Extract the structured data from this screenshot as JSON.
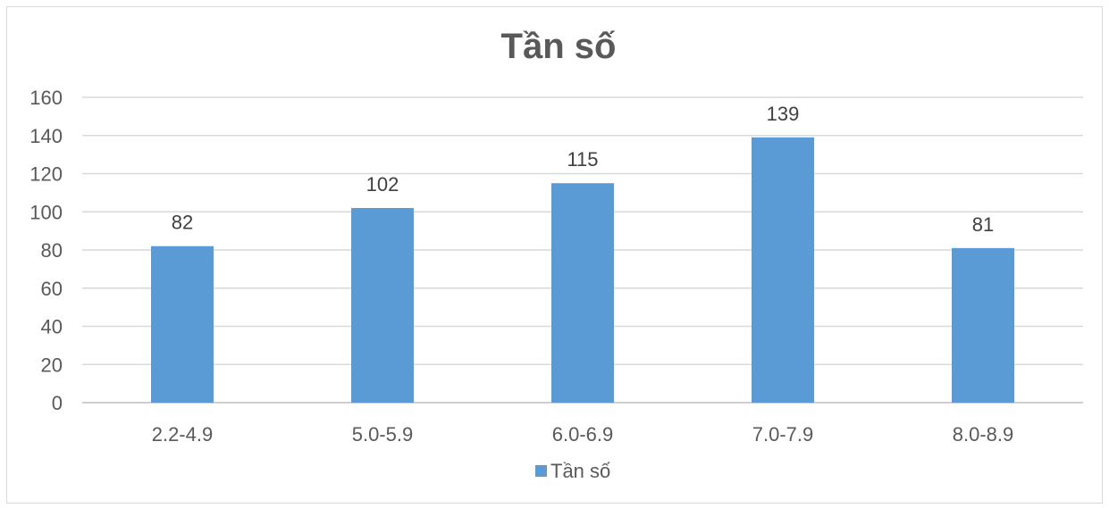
{
  "chart_data": {
    "type": "bar",
    "title": "Tần số",
    "categories": [
      "2.2-4.9",
      "5.0-5.9",
      "6.0-6.9",
      "7.0-7.9",
      "8.0-8.9"
    ],
    "series": [
      {
        "name": "Tần số",
        "values": [
          82,
          102,
          115,
          139,
          81
        ]
      }
    ],
    "ylim": [
      0,
      160
    ],
    "yticks": [
      "0",
      "20",
      "40",
      "60",
      "80",
      "100",
      "120",
      "140",
      "160"
    ],
    "grid": true,
    "legend_position": "bottom",
    "colors": {
      "bar": "#5b9bd5",
      "grid": "#d9d9d9",
      "axis": "#bfbfbf",
      "text": "#595959"
    }
  }
}
